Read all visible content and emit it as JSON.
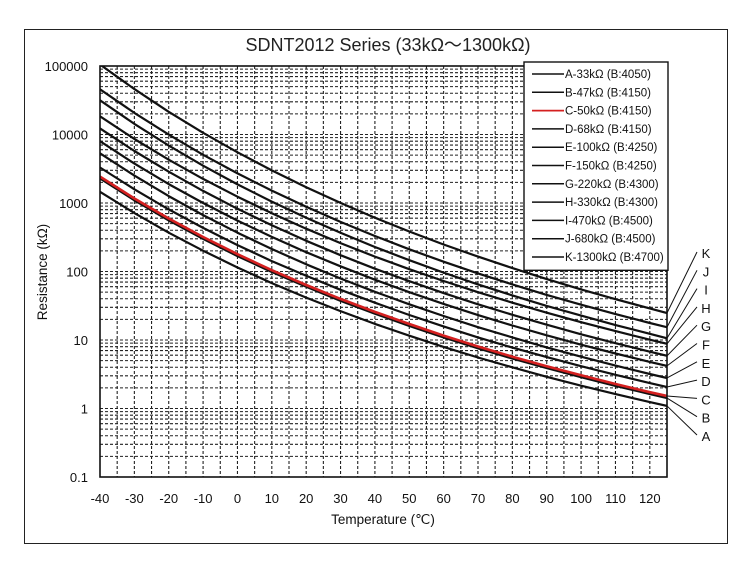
{
  "chart_data": {
    "type": "line",
    "title": "SDNT2012 Series (33kΩ～1300kΩ)",
    "xlabel": "Temperature (℃)",
    "ylabel": "Resistance (kΩ)",
    "xlim": [
      -40,
      125
    ],
    "ylim": [
      0.1,
      100000
    ],
    "yscale": "log",
    "grid": true,
    "legend_position": "top-right",
    "x_ticks": [
      -40,
      -30,
      -20,
      -10,
      0,
      10,
      20,
      30,
      40,
      50,
      60,
      70,
      80,
      90,
      100,
      110,
      120
    ],
    "x_tick_labels": [
      "-40",
      "-30",
      "-20",
      "-10",
      "0",
      "10",
      "20",
      "30",
      "40",
      "50",
      "60",
      "70",
      "80",
      "90",
      "100",
      "110",
      "120"
    ],
    "y_ticks": [
      100000,
      10000,
      1000,
      100,
      10,
      1,
      0.1
    ],
    "y_tick_labels": [
      "100000",
      "10000",
      "1000",
      "100",
      "10",
      "1",
      "0.1"
    ],
    "x": [
      -40,
      -30,
      -20,
      -10,
      0,
      10,
      20,
      30,
      40,
      50,
      60,
      70,
      80,
      90,
      100,
      110,
      120,
      125
    ],
    "series": [
      {
        "name": "A-33kΩ (B:4050)",
        "end_label": "A",
        "color": "#111111",
        "values": [
          1455,
          713,
          369,
          201,
          114.5,
          67.7,
          41.6,
          26.4,
          17.2,
          11.55,
          7.92,
          5.55,
          3.99,
          2.9,
          2.15,
          1.62,
          1.24,
          1.09
        ]
      },
      {
        "name": "B-47kΩ (B:4150)",
        "end_label": "B",
        "color": "#111111",
        "values": [
          2280,
          1095,
          558,
          299,
          168,
          98.2,
          59.7,
          37.4,
          24.2,
          16.0,
          10.9,
          7.57,
          5.36,
          3.89,
          2.86,
          2.14,
          1.63,
          1.42
        ]
      },
      {
        "name": "C-50kΩ (B:4150)",
        "end_label": "C",
        "color": "#d42020",
        "values": [
          2425,
          1165,
          594,
          319,
          179,
          104.5,
          63.5,
          39.8,
          25.7,
          17.1,
          11.6,
          8.05,
          5.7,
          4.14,
          3.05,
          2.28,
          1.73,
          1.52
        ]
      },
      {
        "name": "D-68kΩ (B:4150)",
        "end_label": "D",
        "color": "#111111",
        "values": [
          3298,
          1584,
          807,
          433,
          243,
          142,
          86.4,
          54.1,
          35.0,
          23.2,
          15.8,
          10.9,
          7.75,
          5.63,
          4.14,
          3.1,
          2.35,
          2.06
        ]
      },
      {
        "name": "E-100kΩ (B:4250)",
        "end_label": "E",
        "color": "#111111",
        "values": [
          5320,
          2510,
          1260,
          666,
          369,
          213,
          127.5,
          79.1,
          50.5,
          33.2,
          22.4,
          15.4,
          10.9,
          7.8,
          5.7,
          4.23,
          3.19,
          2.79
        ]
      },
      {
        "name": "F-150kΩ (B:4250)",
        "end_label": "F",
        "color": "#111111",
        "values": [
          7980,
          3765,
          1890,
          999,
          554,
          320,
          191,
          119,
          75.8,
          49.8,
          33.6,
          23.1,
          16.3,
          11.7,
          8.55,
          6.35,
          4.79,
          4.19
        ]
      },
      {
        "name": "G-220kΩ (B:4300)",
        "end_label": "G",
        "color": "#111111",
        "values": [
          12280,
          5740,
          2860,
          1500,
          823,
          473,
          281,
          173,
          110,
          72.2,
          48.4,
          33.2,
          23.3,
          16.7,
          12.1,
          8.98,
          6.75,
          5.87
        ]
      },
      {
        "name": "H-330kΩ (B:4300)",
        "end_label": "H",
        "color": "#111111",
        "values": [
          18410,
          8610,
          4290,
          2250,
          1234,
          710,
          422,
          260,
          165,
          108,
          72.6,
          49.8,
          35.0,
          25.0,
          18.2,
          13.5,
          10.1,
          8.81
        ]
      },
      {
        "name": "I-470kΩ (B:4500)",
        "end_label": "I",
        "color": "#111111",
        "values": [
          31580,
          14290,
          6880,
          3500,
          1871,
          1048,
          608,
          367,
          228,
          146,
          96.4,
          64.9,
          44.8,
          31.5,
          22.7,
          16.5,
          12.3,
          10.6
        ]
      },
      {
        "name": "J-680kΩ (B:4500)",
        "end_label": "J",
        "color": "#111111",
        "values": [
          45700,
          20670,
          9950,
          5060,
          2706,
          1516,
          879,
          530,
          330,
          211,
          139,
          93.8,
          64.9,
          45.6,
          32.8,
          23.9,
          17.7,
          15.4
        ]
      },
      {
        "name": "K-1300kΩ (B:4700)",
        "end_label": "K",
        "color": "#111111",
        "values": [
          105300,
          46020,
          21420,
          10580,
          5500,
          2990,
          1702,
          1002,
          611,
          384,
          248,
          165,
          112,
          77.4,
          54.7,
          39.4,
          28.9,
          24.8
        ]
      }
    ]
  }
}
